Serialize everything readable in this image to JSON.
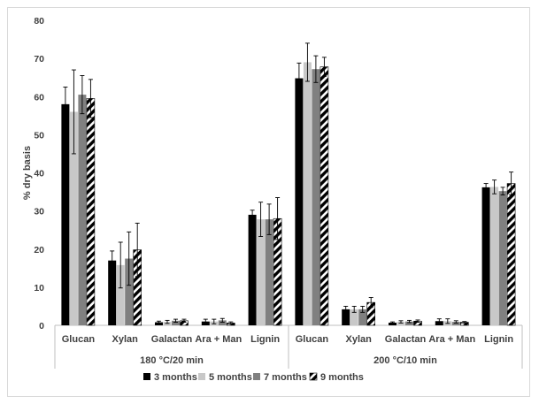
{
  "chart_data": {
    "type": "bar",
    "ylabel": "% dry basis",
    "ylim": [
      0,
      80
    ],
    "yticks": [
      "0",
      "10",
      "20",
      "30",
      "40",
      "50",
      "60",
      "70",
      "80"
    ],
    "categories": [
      "Glucan",
      "Xylan",
      "Galactan",
      "Ara + Man",
      "Lignin",
      "Glucan",
      "Xylan",
      "Galactan",
      "Ara + Man",
      "Lignin"
    ],
    "groups": [
      {
        "label": "180 °C/20 min",
        "count": 5
      },
      {
        "label": "200 °C/10 min",
        "count": 5
      }
    ],
    "legend_position": "bottom",
    "series": [
      {
        "name": "3 months",
        "style": "black",
        "color": "#000000",
        "values": [
          58.0,
          17.0,
          0.8,
          1.0,
          29.0,
          64.8,
          4.2,
          0.7,
          1.1,
          36.2
        ],
        "errors": [
          4.5,
          2.5,
          0.3,
          0.6,
          1.2,
          4.0,
          0.8,
          0.2,
          0.6,
          1.0
        ]
      },
      {
        "name": "5 months",
        "style": "light gray",
        "color": "#c8c8c8",
        "values": [
          56.0,
          15.8,
          0.9,
          1.0,
          27.8,
          69.0,
          4.2,
          0.9,
          1.1,
          36.3
        ],
        "errors": [
          11.0,
          6.0,
          0.4,
          0.6,
          4.5,
          5.0,
          0.8,
          0.3,
          0.6,
          1.8
        ]
      },
      {
        "name": "7 months",
        "style": "dark gray",
        "color": "#808080",
        "values": [
          60.5,
          17.5,
          1.2,
          1.3,
          27.8,
          67.2,
          4.2,
          1.0,
          0.9,
          35.2
        ],
        "errors": [
          5.0,
          7.0,
          0.4,
          0.5,
          4.0,
          3.5,
          0.8,
          0.3,
          0.3,
          1.0
        ]
      },
      {
        "name": "9 months",
        "style": "black/white stripes",
        "color": "#000000",
        "values": [
          59.5,
          19.8,
          1.2,
          0.6,
          28.0,
          67.8,
          6.0,
          1.1,
          0.8,
          37.2
        ],
        "errors": [
          5.0,
          7.0,
          0.4,
          0.3,
          5.5,
          2.5,
          1.3,
          0.3,
          0.2,
          3.0
        ]
      }
    ]
  }
}
